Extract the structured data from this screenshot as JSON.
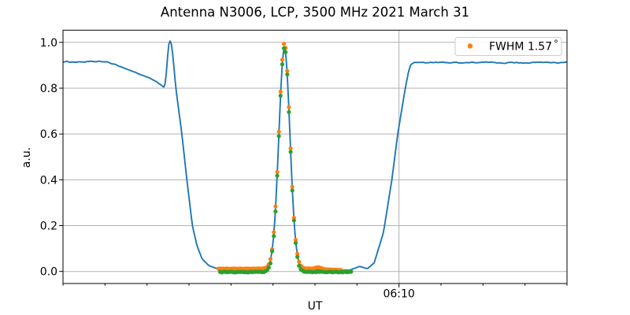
{
  "chart_data": {
    "type": "line+scatter",
    "title": "Antenna N3006, LCP, 3500 MHz 2021 March 31",
    "xlabel": "UT",
    "ylabel": "a.u.",
    "x_axis": {
      "range_minutes": [
        0,
        12
      ],
      "minor_tick_every_min": 1,
      "major_tick_minute": 8,
      "major_tick_label": "06:10",
      "start_time": "06:02",
      "end_time": "06:14"
    },
    "y_axis": {
      "ticks": [
        0.0,
        0.2,
        0.4,
        0.6,
        0.8,
        1.0
      ],
      "tick_labels": [
        "0.0",
        "0.2",
        "0.4",
        "0.6",
        "0.8",
        "1.0"
      ],
      "range": [
        -0.0526,
        1.0533
      ]
    },
    "grid": {
      "horizontal": true,
      "vertical_at_major": true,
      "color": "#b0b0b0"
    },
    "legend": {
      "label": "FWHM 1.57",
      "degree_symbol": "°",
      "marker_color": "#ff7f0e",
      "position": "upper right"
    },
    "series": {
      "drift_scan_line": {
        "color": "#1f77b4",
        "keypoints_min_au": [
          [
            0,
            0.915
          ],
          [
            1.03,
            0.915
          ],
          [
            1.4,
            0.8925
          ],
          [
            1.8,
            0.8635
          ],
          [
            2.1,
            0.8395
          ],
          [
            2.42,
            0.804
          ],
          [
            2.465,
            0.875
          ],
          [
            2.505,
            0.975
          ],
          [
            2.53,
            1.003
          ],
          [
            2.555,
            1.007
          ],
          [
            2.578,
            0.996
          ],
          [
            2.615,
            0.945
          ],
          [
            2.687,
            0.8
          ],
          [
            2.83,
            0.6
          ],
          [
            2.95,
            0.4
          ],
          [
            3.08,
            0.2
          ],
          [
            3.19,
            0.113
          ],
          [
            3.31,
            0.055
          ],
          [
            3.47,
            0.026
          ],
          [
            3.62,
            0.015
          ],
          [
            3.75,
            0.0125
          ],
          [
            4.5,
            0.0115
          ],
          [
            5.9,
            0.009
          ],
          [
            6.5,
            0.006
          ],
          [
            6.82,
            0.005
          ],
          [
            7.06,
            0.022
          ],
          [
            7.25,
            0.012
          ],
          [
            7.41,
            0.038
          ],
          [
            7.63,
            0.17
          ],
          [
            7.83,
            0.4
          ],
          [
            7.97,
            0.6
          ],
          [
            8.15,
            0.8
          ],
          [
            8.23,
            0.875
          ],
          [
            8.28,
            0.902
          ],
          [
            8.35,
            0.912
          ],
          [
            12,
            0.912
          ]
        ],
        "gaussian_peak": {
          "center_min": 5.272,
          "sigma_min": 0.132,
          "amplitude_au": 0.9647
        }
      },
      "fit_scatter": {
        "color": "#ff7f0e",
        "start_min": 3.7,
        "end_min": 6.62,
        "step_min": 0.04,
        "baseline_au": 0.0125,
        "tail_slope": {
          "from_min": 5.9,
          "per_min": -0.0085
        },
        "tail_hump": {
          "center_min": 6.08,
          "sigma_min": 0.07,
          "amplitude_au": 0.007
        },
        "gaussian": {
          "center_min": 5.272,
          "sigma_min": 0.132,
          "amplitude_au": 0.985
        }
      },
      "data_scatter": {
        "color": "#2ca02c",
        "start_min": 3.74,
        "end_min": 6.86,
        "step_min": 0.04,
        "baseline_au": -0.0025,
        "gaussian": {
          "center_min": 5.272,
          "sigma_min": 0.132,
          "amplitude_au": 0.982
        }
      }
    }
  }
}
